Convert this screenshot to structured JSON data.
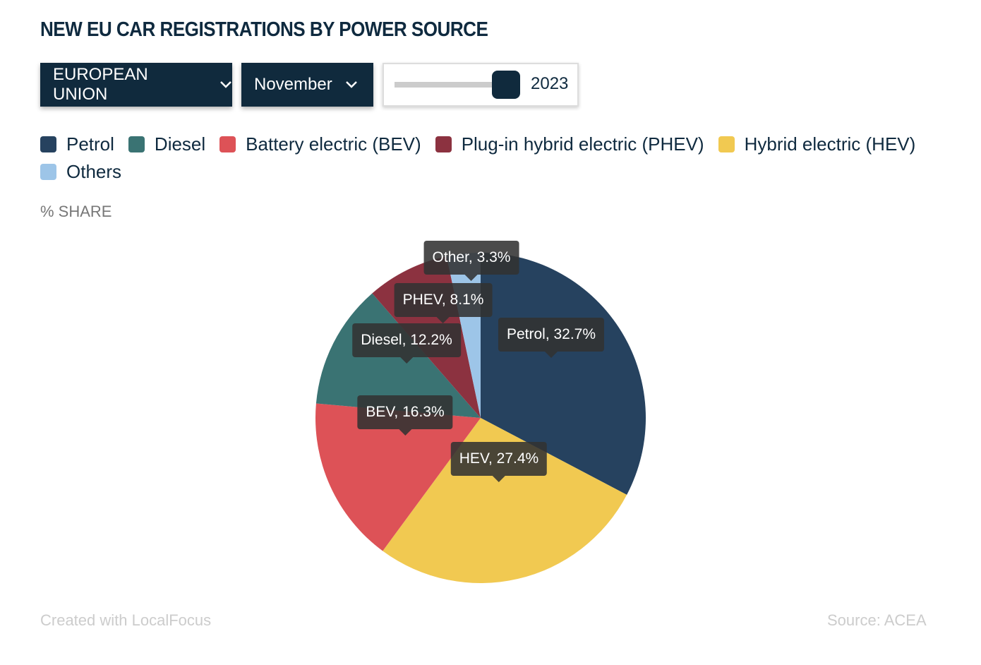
{
  "title": "NEW EU CAR REGISTRATIONS BY POWER SOURCE",
  "controls": {
    "region": "EUROPEAN UNION",
    "month": "November",
    "year": "2023"
  },
  "ylabel": "% SHARE",
  "footer": {
    "credit": "Created with LocalFocus",
    "source": "Source:  ACEA"
  },
  "chart_data": {
    "type": "pie",
    "title": "NEW EU CAR REGISTRATIONS BY POWER SOURCE",
    "unit": "% SHARE",
    "legend": [
      "Petrol",
      "Diesel",
      "Battery electric (BEV)",
      "Plug-in hybrid electric (PHEV)",
      "Hybrid electric (HEV)",
      "Others"
    ],
    "legend_colors": [
      "#26425f",
      "#3a7373",
      "#dd5257",
      "#8c3240",
      "#f1c951",
      "#9dc5e8"
    ],
    "slices": [
      {
        "name": "Petrol",
        "label": "Petrol, 32.7%",
        "value": 32.7,
        "color": "#26425f"
      },
      {
        "name": "HEV",
        "label": "HEV, 27.4%",
        "value": 27.4,
        "color": "#f1c951"
      },
      {
        "name": "BEV",
        "label": "BEV, 16.3%",
        "value": 16.3,
        "color": "#dd5257"
      },
      {
        "name": "Diesel",
        "label": "Diesel, 12.2%",
        "value": 12.2,
        "color": "#3a7373"
      },
      {
        "name": "PHEV",
        "label": "PHEV, 8.1%",
        "value": 8.1,
        "color": "#8c3240"
      },
      {
        "name": "Other",
        "label": "Other, 3.3%",
        "value": 3.3,
        "color": "#9dc5e8"
      }
    ]
  }
}
